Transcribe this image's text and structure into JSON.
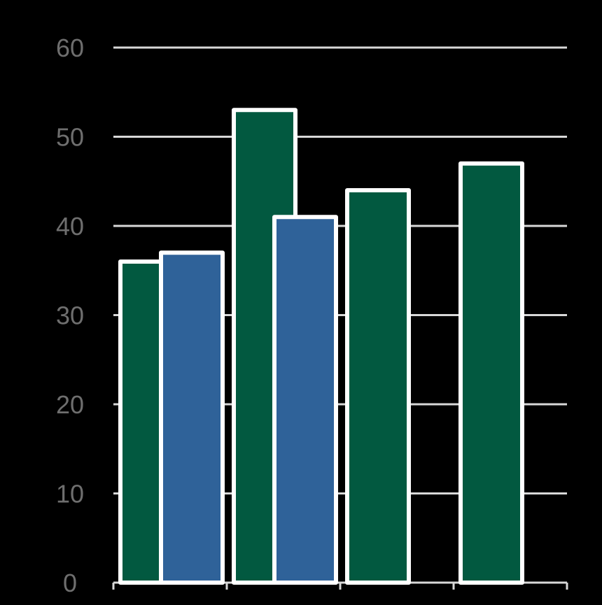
{
  "chart_data": {
    "type": "bar",
    "categories": [
      "",
      "",
      "",
      ""
    ],
    "series": [
      {
        "color": "#025940",
        "values": [
          36,
          53,
          44,
          47
        ]
      },
      {
        "color": "#2f6299",
        "values": [
          37,
          41,
          null,
          null
        ]
      }
    ],
    "title": "",
    "xlabel": "",
    "ylabel": "",
    "ylim": [
      0,
      60
    ],
    "yticks": [
      0,
      10,
      20,
      30,
      40,
      50,
      60
    ],
    "grid": true,
    "background": "#000000",
    "bar_outline_color": "#ffffff"
  }
}
